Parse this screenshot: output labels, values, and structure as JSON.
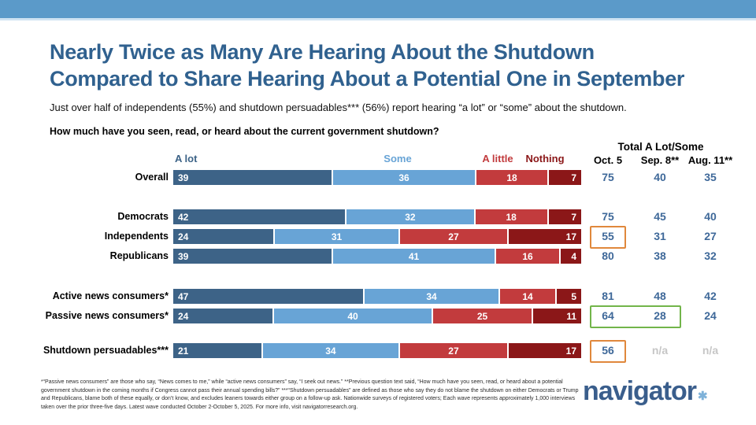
{
  "header": {
    "strip_color": "#5b9ac9",
    "strip_edge_color": "#cfe3f2"
  },
  "title": {
    "line1": "Nearly Twice as Many Are Hearing About the Shutdown",
    "line2": "Compared to Share Hearing About a Potential One in September",
    "color": "#30618f"
  },
  "subtitle": "Just over half of independents (55%) and shutdown persuadables*** (56%) report hearing “a lot” or “some” about the shutdown.",
  "question": "How much have you seen, read, or heard about the current government shutdown?",
  "totals_header": {
    "title": "Total A Lot/Some",
    "columns": [
      "Oct. 5",
      "Sep. 8**",
      "Aug. 11**"
    ]
  },
  "chart_data": {
    "type": "bar",
    "orientation": "horizontal",
    "stacked": true,
    "series_labels": [
      "A lot",
      "Some",
      "A little",
      "Nothing"
    ],
    "series_colors": [
      "#3d6387",
      "#68a4d6",
      "#c23b3d",
      "#8b1718"
    ],
    "totals_color": "#3e6899",
    "na_color": "#c6c6c6",
    "highlight_colors": {
      "orange": "#e0883c",
      "green": "#72b54a"
    },
    "rows": [
      {
        "label": "Overall",
        "values": [
          39,
          36,
          18,
          7
        ],
        "totals": [
          "75",
          "40",
          "35"
        ]
      },
      {
        "label": "Democrats",
        "values": [
          42,
          32,
          18,
          7
        ],
        "totals": [
          "75",
          "45",
          "40"
        ]
      },
      {
        "label": "Independents",
        "values": [
          24,
          31,
          27,
          17
        ],
        "totals": [
          "55",
          "31",
          "27"
        ],
        "highlight": {
          "type": "orange",
          "cols": [
            0
          ]
        }
      },
      {
        "label": "Republicans",
        "values": [
          39,
          41,
          16,
          4
        ],
        "totals": [
          "80",
          "38",
          "32"
        ]
      },
      {
        "label": "Active news consumers*",
        "values": [
          47,
          34,
          14,
          5
        ],
        "totals": [
          "81",
          "48",
          "42"
        ]
      },
      {
        "label": "Passive news consumers*",
        "values": [
          24,
          40,
          25,
          11
        ],
        "totals": [
          "64",
          "28",
          "24"
        ],
        "highlight": {
          "type": "green",
          "cols": [
            0,
            1
          ]
        }
      },
      {
        "label": "Shutdown persuadables***",
        "values": [
          21,
          34,
          27,
          17
        ],
        "totals": [
          "56",
          "n/a",
          "n/a"
        ],
        "highlight": {
          "type": "orange",
          "cols": [
            0
          ]
        }
      }
    ]
  },
  "footnote": "*“Passive news consumers” are those who say, “News comes to me,” while “active news consumers” say, “I seek out news.” **Previous question text said, “How much have you seen, read, or heard about a potential government shutdown in the coming months if Congress cannot pass their annual spending bills?” ***“Shutdown persuadables” are defined as those who say they do not blame the shutdown on either Democrats or Trump and Republicans, blame both of these equally, or don’t know, and excludes leaners towards either group on a follow-up ask. Nationwide surveys of registered voters; Each wave represents approximately 1,000 interviews taken over the prior three-five days. Latest wave conducted October 2-October 5, 2025. For more info, visit navigatorresearch.org.",
  "logo": {
    "text": "navigator",
    "mark": "✱",
    "text_color": "#3a5e8c",
    "mark_color": "#7fb2d9"
  }
}
